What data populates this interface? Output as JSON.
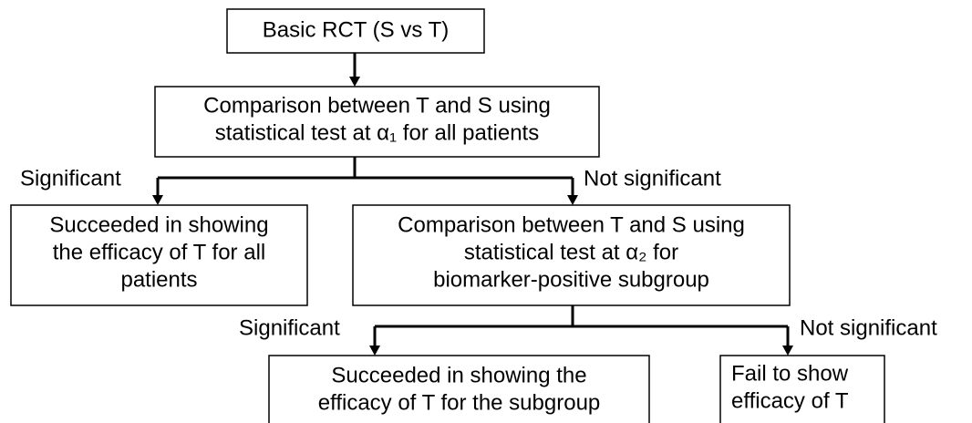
{
  "nodes": [
    {
      "lines": [
        "Basic RCT (S vs T)"
      ]
    },
    {
      "lines": [
        "Comparison between T and S using",
        "statistical test at α₁ for all patients"
      ]
    },
    {
      "lines": [
        "Succeeded in showing",
        "the efficacy of T for all",
        "patients"
      ]
    },
    {
      "lines": [
        "Comparison between T and S using",
        "statistical test at α₂ for",
        "biomarker-positive subgroup"
      ]
    },
    {
      "lines": [
        "Succeeded in showing the",
        "efficacy of T for the subgroup"
      ]
    },
    {
      "lines": [
        "Fail to show",
        "efficacy of T"
      ]
    }
  ],
  "edge_labels": [
    "Significant",
    "Not significant",
    "Significant",
    "Not significant"
  ]
}
